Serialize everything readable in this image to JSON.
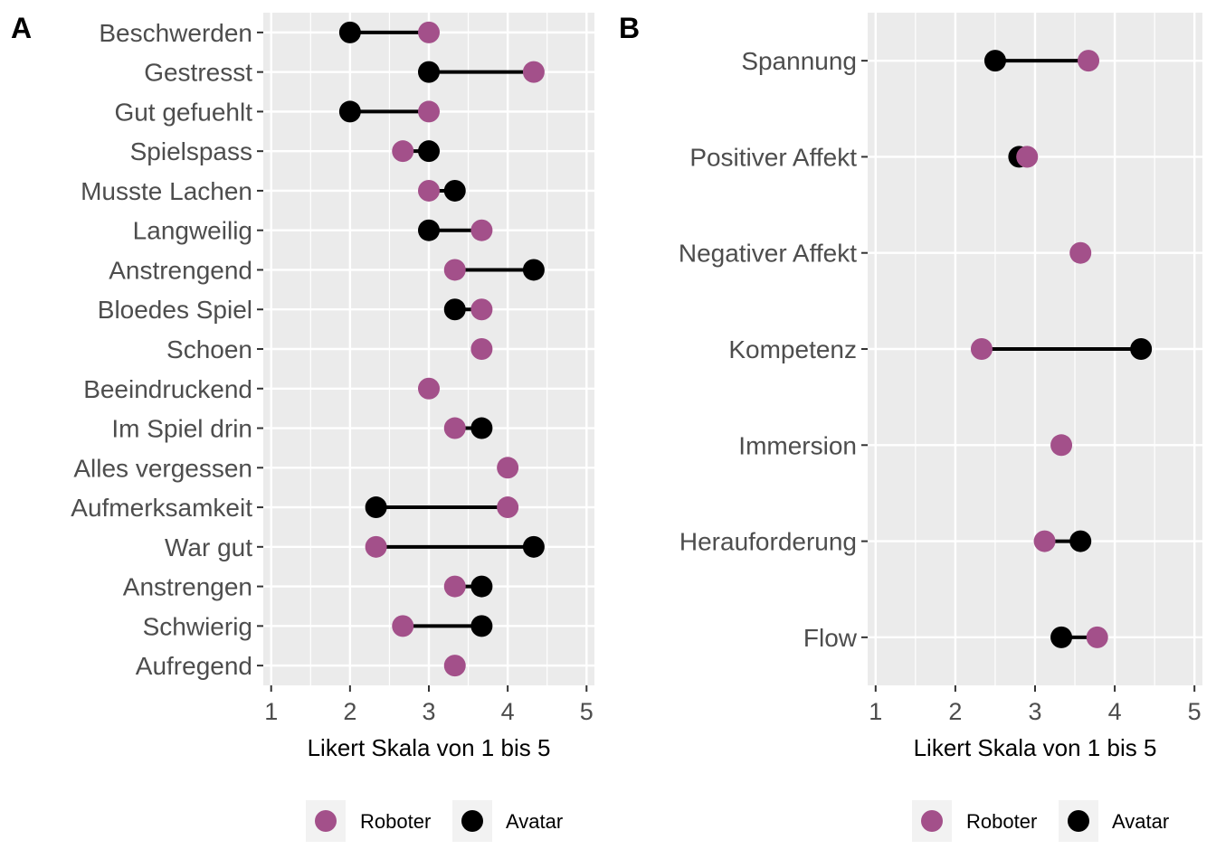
{
  "chart_data": [
    {
      "type": "dumbbell",
      "panel_tag": "A",
      "xlabel": "Likert Skala von 1 bis 5",
      "xlim": [
        0.9,
        5.1
      ],
      "xticks": [
        1,
        2,
        3,
        4,
        5
      ],
      "grid": true,
      "legend_position": "bottom",
      "categories": [
        "Beschwerden",
        "Gestresst",
        "Gut gefuehlt",
        "Spielspass",
        "Musste Lachen",
        "Langweilig",
        "Anstrengend",
        "Bloedes Spiel",
        "Schoen",
        "Beeindruckend",
        "Im Spiel drin",
        "Alles vergessen",
        "Aufmerksamkeit",
        "War gut",
        "Anstrengen",
        "Schwierig",
        "Aufregend"
      ],
      "series": [
        {
          "name": "Roboter",
          "color": "#a3508a",
          "values": [
            3.0,
            4.33,
            3.0,
            2.67,
            3.0,
            3.67,
            3.33,
            3.67,
            3.67,
            3.0,
            3.33,
            4.0,
            4.0,
            2.33,
            3.33,
            2.67,
            3.33
          ]
        },
        {
          "name": "Avatar",
          "color": "#000000",
          "values": [
            2.0,
            3.0,
            2.0,
            3.0,
            3.33,
            3.0,
            4.33,
            3.33,
            3.67,
            3.0,
            3.67,
            4.0,
            2.33,
            4.33,
            3.67,
            3.67,
            3.33
          ]
        }
      ]
    },
    {
      "type": "dumbbell",
      "panel_tag": "B",
      "xlabel": "Likert Skala von 1 bis 5",
      "xlim": [
        0.9,
        5.1
      ],
      "xticks": [
        1,
        2,
        3,
        4,
        5
      ],
      "grid": true,
      "legend_position": "bottom",
      "categories": [
        "Spannung",
        "Positiver Affekt",
        "Negativer Affekt",
        "Kompetenz",
        "Immersion",
        "Herauforderung",
        "Flow"
      ],
      "series": [
        {
          "name": "Roboter",
          "color": "#a3508a",
          "values": [
            3.67,
            2.9,
            3.57,
            2.33,
            3.33,
            3.12,
            3.78
          ]
        },
        {
          "name": "Avatar",
          "color": "#000000",
          "values": [
            2.5,
            2.8,
            3.57,
            4.33,
            3.33,
            3.57,
            3.33
          ]
        }
      ]
    }
  ]
}
